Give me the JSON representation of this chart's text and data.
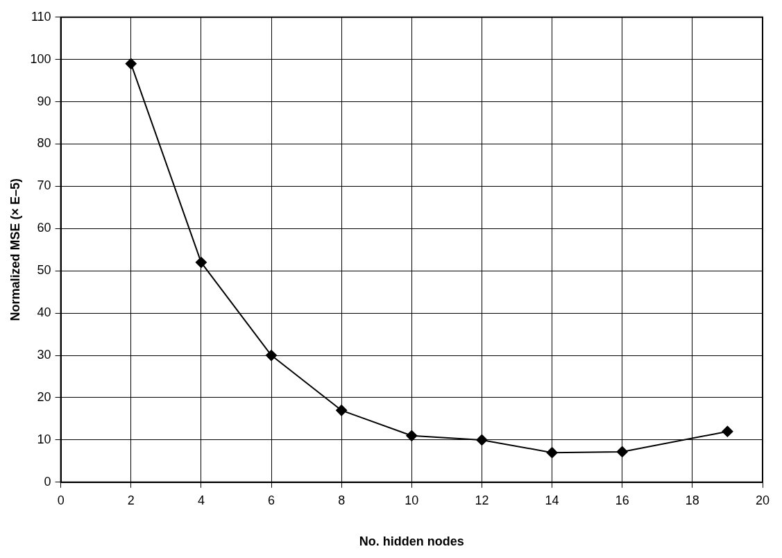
{
  "chart_data": {
    "type": "line",
    "xlabel": "No. hidden nodes",
    "ylabel": "Normalized MSE (× E–5)",
    "x": [
      2,
      4,
      6,
      8,
      10,
      12,
      14,
      16,
      19
    ],
    "series": [
      {
        "color": "#000000",
        "values": [
          99,
          52,
          30,
          17,
          11,
          10,
          7,
          7.2,
          12
        ]
      }
    ],
    "xlim": [
      0,
      20
    ],
    "xticks": [
      0,
      2,
      4,
      6,
      8,
      10,
      12,
      14,
      16,
      18,
      20
    ],
    "ylim": [
      0,
      110
    ],
    "yticks": [
      0,
      10,
      20,
      30,
      40,
      50,
      60,
      70,
      80,
      90,
      100,
      110
    ],
    "grid": true,
    "legend": false,
    "marker": "diamond",
    "line_style": "solid"
  }
}
